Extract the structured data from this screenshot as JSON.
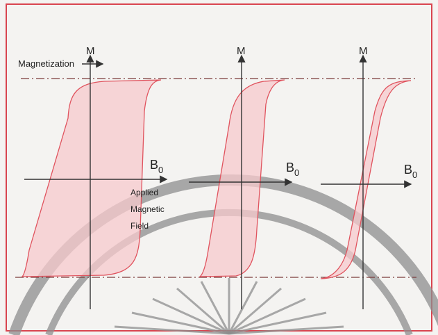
{
  "labels": {
    "magnetization": "Magnetization",
    "loops": [
      {
        "m": "M",
        "b": "B",
        "sub": "0"
      },
      {
        "m": "M",
        "b": "B",
        "sub": "0"
      },
      {
        "m": "M",
        "b": "B",
        "sub": "0"
      }
    ],
    "applied_field": [
      "Applied",
      "Magnetic",
      "Field"
    ]
  }
}
